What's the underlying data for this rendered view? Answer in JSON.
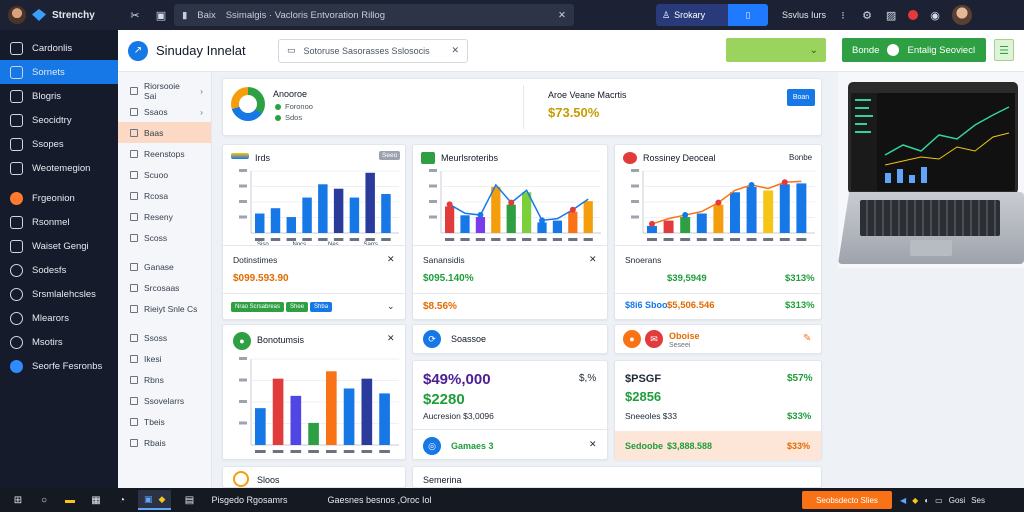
{
  "app": {
    "brand": "Strenchy"
  },
  "topbar": {
    "search_left": "Baix",
    "search_text": "Ssimalgis · Vacloris Entvoration Rillog",
    "action_label": "Srokary",
    "user_label": "Ssvlus Iurs"
  },
  "sidebar": {
    "items": [
      {
        "label": "Cardonlis",
        "icon": "grid-icon",
        "active": false
      },
      {
        "label": "Sornets",
        "icon": "list-icon",
        "active": true
      },
      {
        "label": "Blogris",
        "icon": "book-icon",
        "active": false
      },
      {
        "label": "Seocidtry",
        "icon": "doc-icon",
        "active": false
      },
      {
        "label": "Ssopes",
        "icon": "copy-icon",
        "active": false
      },
      {
        "label": "Weotemegion",
        "icon": "monitor-icon",
        "active": false
      },
      {
        "label": "Frgeonion",
        "icon": "fire-icon",
        "active": false
      },
      {
        "label": "Rsonmel",
        "icon": "chart-icon",
        "active": false
      },
      {
        "label": "Waiset Gengi",
        "icon": "square-icon",
        "active": false
      },
      {
        "label": "Sodesfs",
        "icon": "settings-icon",
        "active": false
      },
      {
        "label": "Srsmlalehcsles",
        "icon": "clock-icon",
        "active": false
      },
      {
        "label": "Mlearors",
        "icon": "mail-icon",
        "active": false
      },
      {
        "label": "Msotirs",
        "icon": "users-icon",
        "active": false
      },
      {
        "label": "Seorfe Fesronbs",
        "icon": "globe-icon",
        "active": false
      }
    ]
  },
  "header": {
    "title": "Sinuday Innelat",
    "filter_text": "Sotoruse Sasorasses Sslosocis"
  },
  "green_button": {
    "label": "Entalig Seoviecl"
  },
  "subnav": {
    "items": [
      {
        "label": "Riorsooie Sai",
        "chev": "›"
      },
      {
        "label": "Ssaos",
        "chev": "›"
      },
      {
        "label": "Baas",
        "active": true
      },
      {
        "label": "Reenstops",
        "chev": ""
      },
      {
        "label": "Scuoo"
      },
      {
        "label": "Rcosa"
      },
      {
        "label": "Reseny"
      },
      {
        "label": "Scoss"
      },
      {
        "label": "Ganase"
      },
      {
        "label": "Srcosaas"
      },
      {
        "label": "Rieiyt Snle Cs"
      },
      {
        "label": "Ssoss"
      },
      {
        "label": "Ikesi"
      },
      {
        "label": "Rbns"
      },
      {
        "label": "Ssovelarrs"
      },
      {
        "label": "Tbeis"
      },
      {
        "label": "Rbais"
      }
    ]
  },
  "overview": {
    "title": "Anooroe",
    "legend": [
      "Foronoo",
      "Sdos"
    ],
    "center_title": "Aroe Veane Macrtis",
    "center_value": "$73.50%",
    "chip_label": "Boan"
  },
  "panels": [
    {
      "title": "Irds",
      "badge": "Seeo",
      "stat_label": "Dotinstimes",
      "stat_value": "$099.593.90",
      "pills": [
        "Nrao Scrsabreas",
        "Shee",
        "Shba"
      ]
    },
    {
      "title": "Meurlsroteribs",
      "stat_label": "Sanansidis",
      "stat_value": "$095.140%",
      "stat_value2": "$8.56%"
    },
    {
      "title": "Rossiney Deoceal",
      "badge": "Bonbe",
      "rows": [
        {
          "label": "Snoerans",
          "value": "$39,5949",
          "pct": "$313%"
        },
        {
          "label": "$8i6 Sboo",
          "value": "$5,506.546",
          "pct": "$313%"
        }
      ]
    }
  ],
  "bottom": {
    "left_title": "Bonotumsis",
    "mid_title": "Soassoe",
    "mid_big": "$49%,000",
    "mid_big_pct": "$,%",
    "mid_sub": "$2280",
    "mid_line": "Aucresion $3,0096",
    "mid_footer": "Gamaes 3",
    "right_title": "Oboise",
    "right_sub": "Seseei",
    "right_big": "$PSGF",
    "right_big_pct": "$57%",
    "right_sub2": "$2856",
    "right_line": "Sneeoles $33",
    "right_line_pct": "$33%",
    "right_footer_label": "Sedoobe",
    "right_footer_value": "$3,888.588",
    "right_footer_pct": "$33%",
    "last_left": "Sloos",
    "last_mid": "Semerina"
  },
  "charts": {
    "irds": {
      "type": "bar",
      "ticks": [
        "Siso",
        "Nocs",
        "Nes",
        "Sarrs"
      ],
      "values": [
        {
          "v": 22,
          "c": "#1677e6"
        },
        {
          "v": 28,
          "c": "#1677e6"
        },
        {
          "v": 18,
          "c": "#1677e6"
        },
        {
          "v": 40,
          "c": "#1677e6"
        },
        {
          "v": 55,
          "c": "#1677e6"
        },
        {
          "v": 50,
          "c": "#2a3b9c"
        },
        {
          "v": 40,
          "c": "#1677e6"
        },
        {
          "v": 68,
          "c": "#2a3b9c"
        },
        {
          "v": 44,
          "c": "#1677e6"
        }
      ]
    },
    "meurs": {
      "type": "bar",
      "values": [
        {
          "v": 30,
          "c": "#e23b3b"
        },
        {
          "v": 20,
          "c": "#1677e6"
        },
        {
          "v": 18,
          "c": "#7c3aed"
        },
        {
          "v": 52,
          "c": "#f59e0b"
        },
        {
          "v": 32,
          "c": "#2ea043"
        },
        {
          "v": 46,
          "c": "#7bcf3a"
        },
        {
          "v": 12,
          "c": "#1677e6"
        },
        {
          "v": 14,
          "c": "#1677e6"
        },
        {
          "v": 24,
          "c": "#f97316"
        },
        {
          "v": 36,
          "c": "#f59e0b"
        }
      ]
    },
    "rossiney": {
      "type": "bar",
      "values": [
        {
          "v": 8,
          "c": "#1677e6"
        },
        {
          "v": 14,
          "c": "#e23b3b"
        },
        {
          "v": 18,
          "c": "#2ea043"
        },
        {
          "v": 22,
          "c": "#1677e6"
        },
        {
          "v": 32,
          "c": "#f59e0b"
        },
        {
          "v": 46,
          "c": "#1677e6"
        },
        {
          "v": 52,
          "c": "#1677e6"
        },
        {
          "v": 48,
          "c": "#f5c518"
        },
        {
          "v": 55,
          "c": "#1677e6"
        },
        {
          "v": 56,
          "c": "#1677e6"
        }
      ]
    },
    "bonot": {
      "type": "bar",
      "values": [
        {
          "v": 30,
          "c": "#1677e6"
        },
        {
          "v": 54,
          "c": "#e23b3b"
        },
        {
          "v": 40,
          "c": "#4f46e5"
        },
        {
          "v": 18,
          "c": "#2ea043"
        },
        {
          "v": 60,
          "c": "#f97316"
        },
        {
          "v": 46,
          "c": "#1677e6"
        },
        {
          "v": 54,
          "c": "#2a3b9c"
        },
        {
          "v": 42,
          "c": "#1677e6"
        }
      ]
    }
  },
  "taskbar": {
    "app1": "Pisgedo Rgosamrs",
    "app2": "Gaesnes besnos ,Oroc Iol",
    "orange_label": "Seobsdecto Slies",
    "tray": [
      "Gosi",
      "Ses"
    ]
  }
}
